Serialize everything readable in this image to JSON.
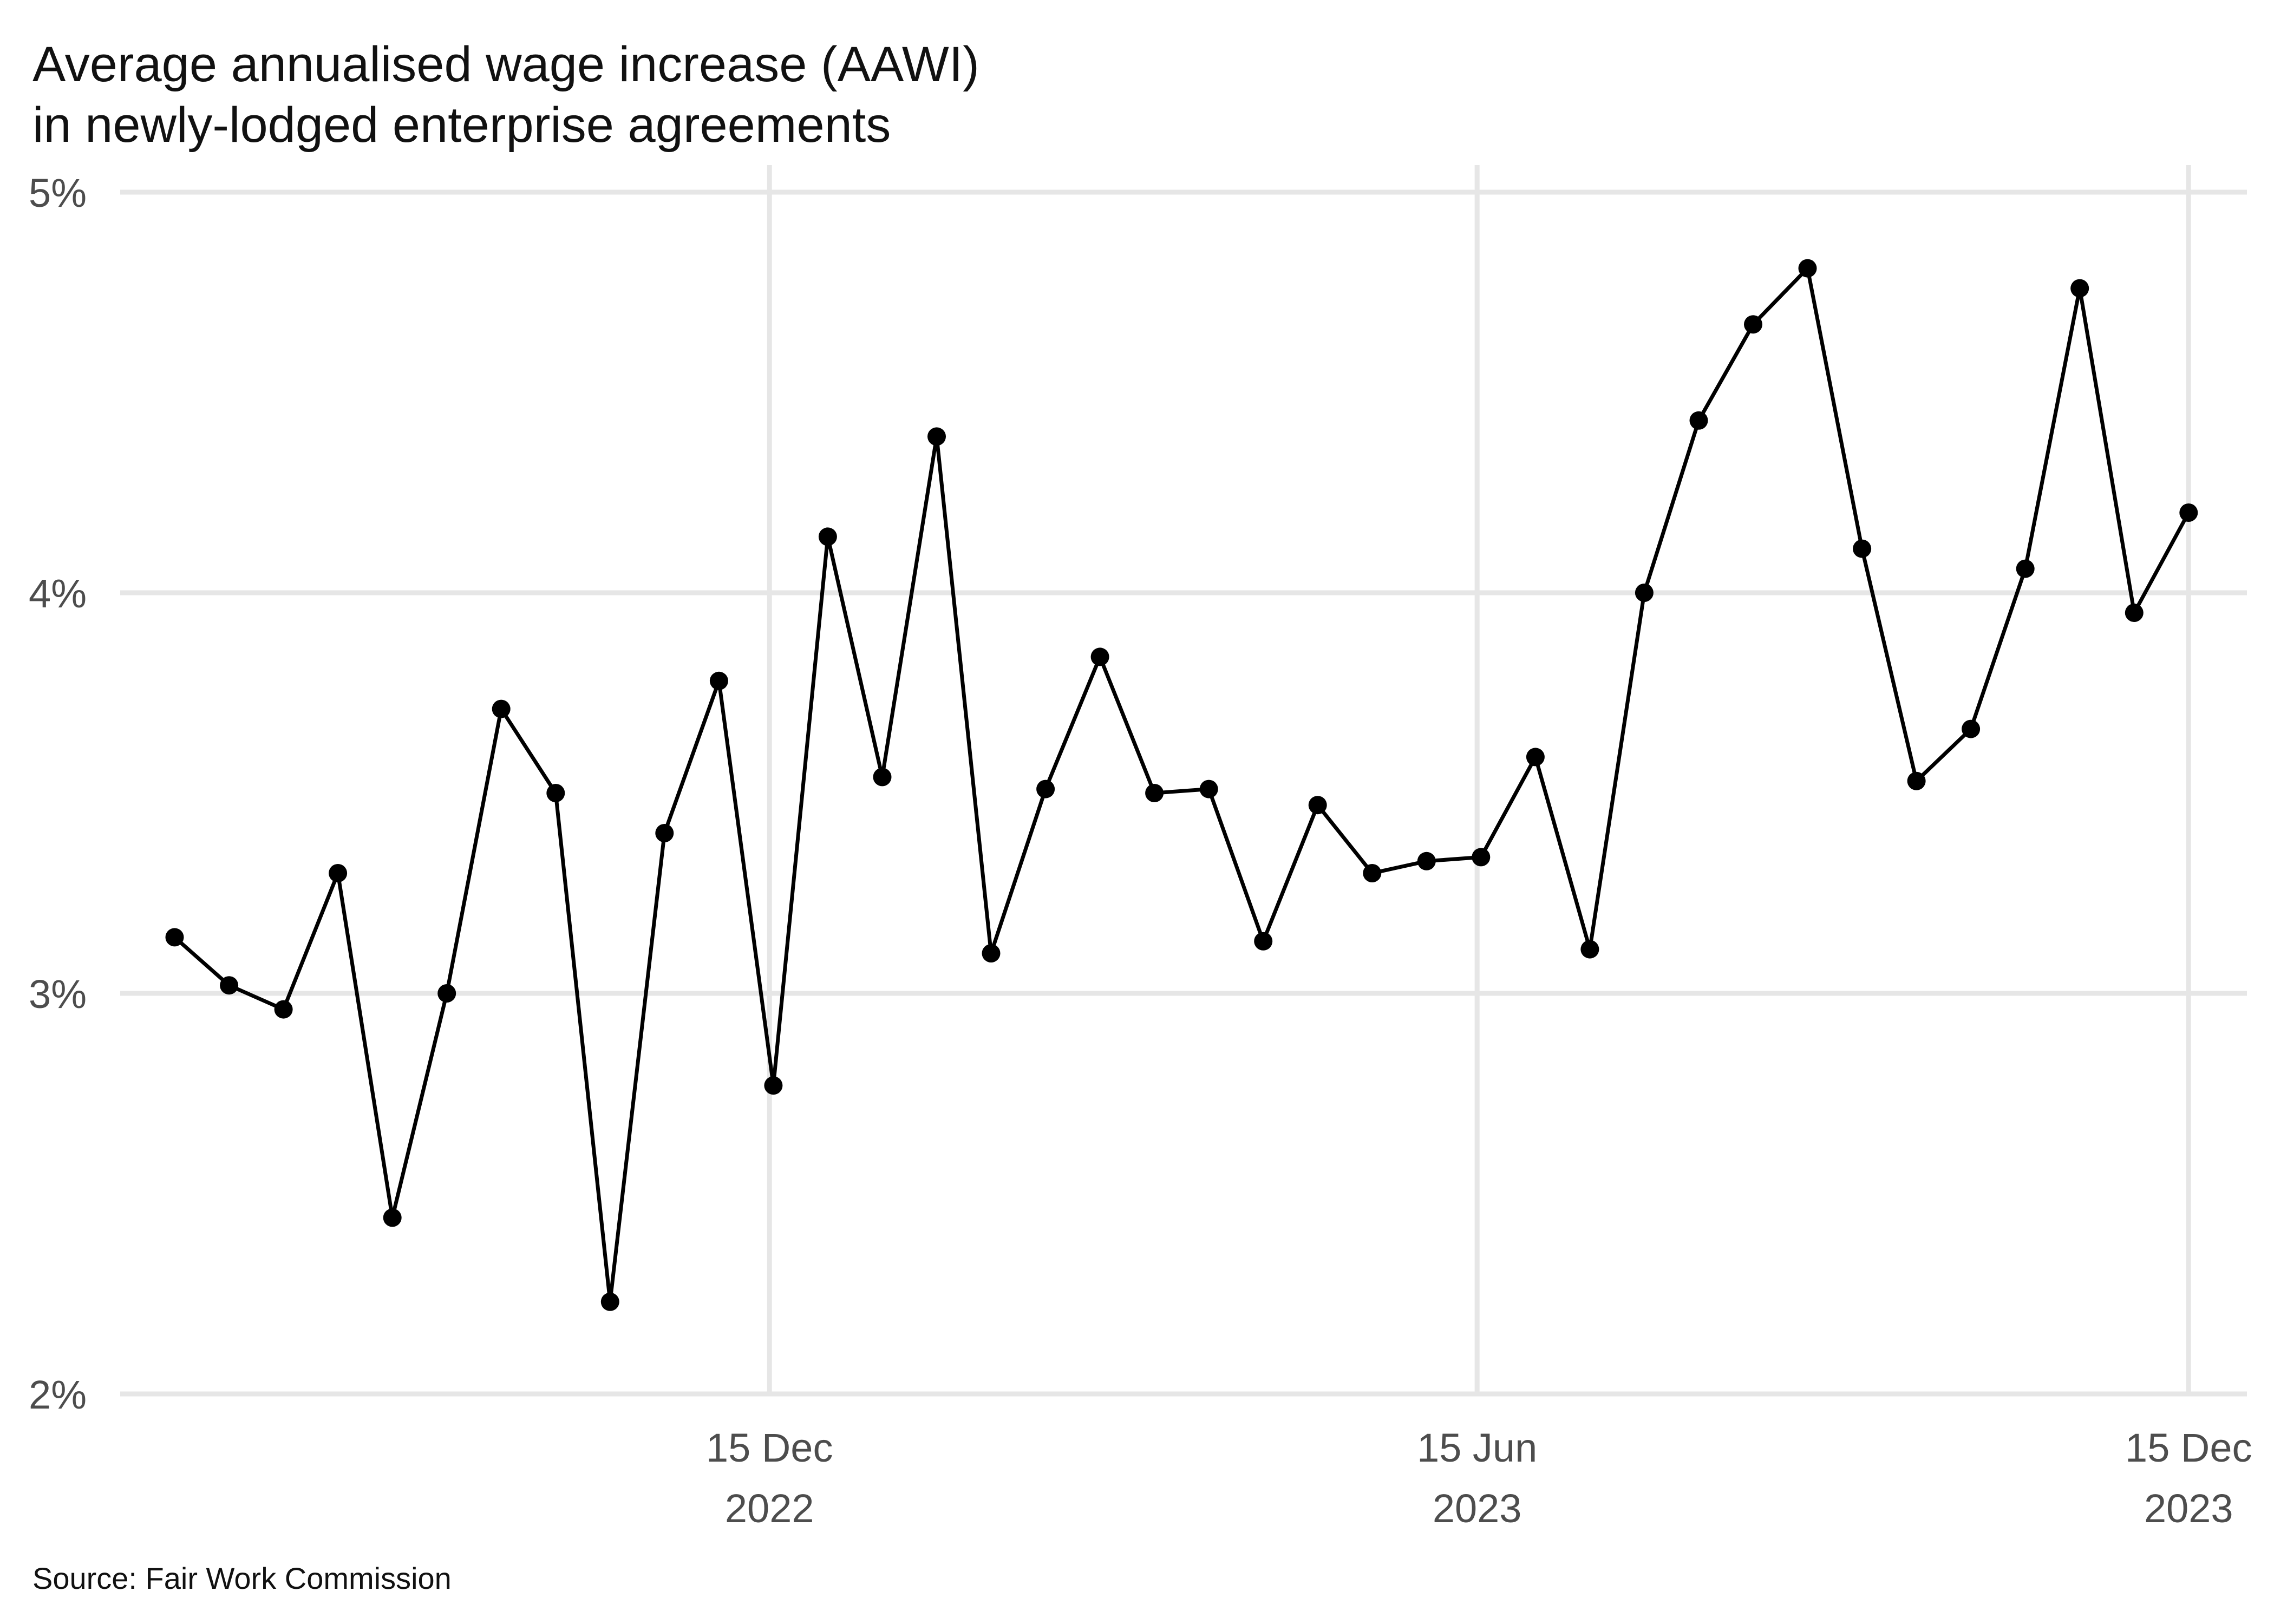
{
  "chart_data": {
    "type": "line",
    "title": [
      "Average annualised wage increase (AAWI)",
      "in newly-lodged enterprise agreements"
    ],
    "caption": "Source: Fair Work Commission",
    "xlabel": "",
    "ylabel": "",
    "ylim": [
      2,
      5
    ],
    "yticks": [
      {
        "value": 2,
        "label": "2%"
      },
      {
        "value": 3,
        "label": "3%"
      },
      {
        "value": 4,
        "label": "4%"
      },
      {
        "value": 5,
        "label": "5%"
      }
    ],
    "xlim": [
      "2022-07-01",
      "2023-12-30"
    ],
    "xticks": [
      {
        "date": "2022-12-15",
        "lines": [
          "15 Dec",
          "2022"
        ]
      },
      {
        "date": "2023-06-15",
        "lines": [
          "15 Jun",
          "2023"
        ]
      },
      {
        "date": "2023-12-15",
        "lines": [
          "15 Dec",
          "2023"
        ]
      }
    ],
    "grid": true,
    "legend": "none",
    "line_color": "#000000",
    "grid_color": "#e6e6e6",
    "series": [
      {
        "name": "",
        "x": [
          "2022-07-15",
          "2022-07-29",
          "2022-08-12",
          "2022-08-26",
          "2022-09-09",
          "2022-09-23",
          "2022-10-07",
          "2022-10-21",
          "2022-11-04",
          "2022-11-18",
          "2022-12-02",
          "2022-12-16",
          "2022-12-30",
          "2023-01-13",
          "2023-01-27",
          "2023-02-10",
          "2023-02-24",
          "2023-03-10",
          "2023-03-24",
          "2023-04-07",
          "2023-04-21",
          "2023-05-05",
          "2023-05-19",
          "2023-06-02",
          "2023-06-16",
          "2023-06-30",
          "2023-07-14",
          "2023-07-28",
          "2023-08-11",
          "2023-08-25",
          "2023-09-08",
          "2023-09-22",
          "2023-10-06",
          "2023-10-20",
          "2023-11-03",
          "2023-11-17",
          "2023-12-01",
          "2023-12-15"
        ],
        "y": [
          3.14,
          3.02,
          2.96,
          3.3,
          2.44,
          3.0,
          3.71,
          3.5,
          2.23,
          3.4,
          3.78,
          2.77,
          4.14,
          3.54,
          4.39,
          3.1,
          3.51,
          3.84,
          3.5,
          3.51,
          3.13,
          3.47,
          3.3,
          3.33,
          3.34,
          3.59,
          3.11,
          4.0,
          4.43,
          4.67,
          4.81,
          4.11,
          3.53,
          3.66,
          4.06,
          4.76,
          3.95,
          4.2
        ]
      }
    ]
  }
}
